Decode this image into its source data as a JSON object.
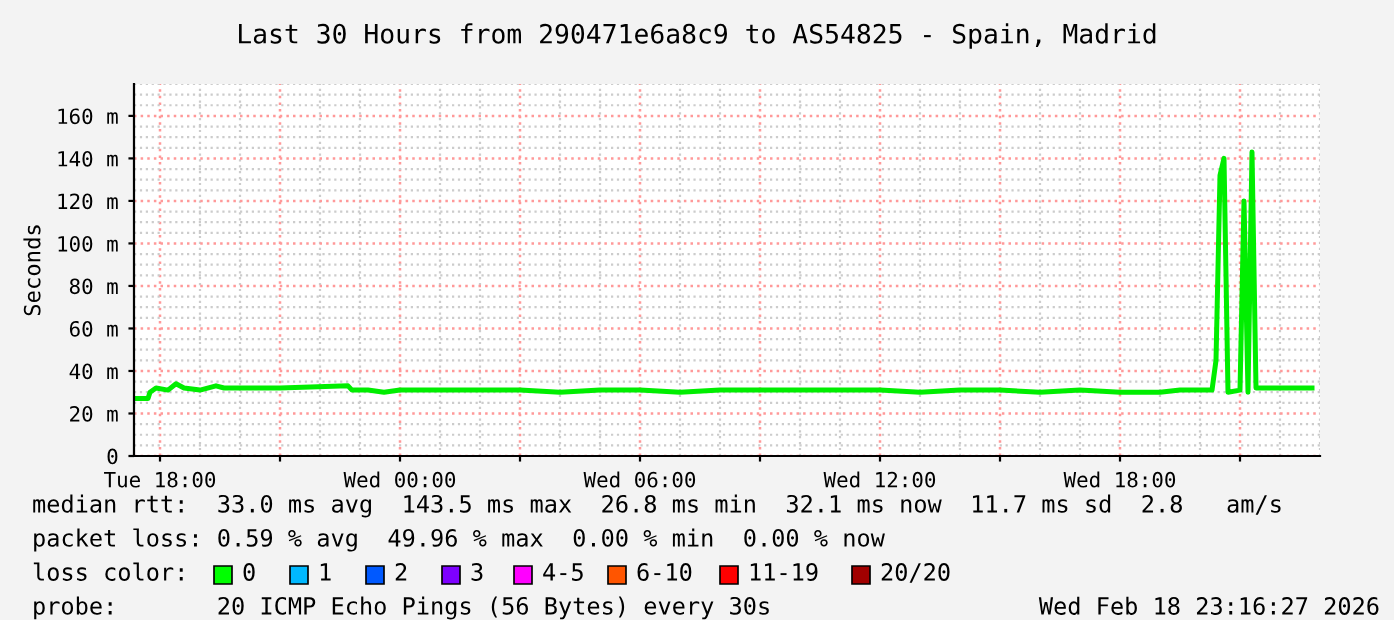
{
  "chart_data": {
    "type": "line",
    "title": "Last 30 Hours from 290471e6a8c9 to AS54825 - Spain, Madrid",
    "ylabel": "Seconds",
    "x": [
      "2026-02-17T17:21",
      "2026-02-17T17:42",
      "2026-02-17T17:45",
      "2026-02-17T17:54",
      "2026-02-17T18:12",
      "2026-02-17T18:24",
      "2026-02-17T18:36",
      "2026-02-17T19:00",
      "2026-02-17T19:24",
      "2026-02-17T19:36",
      "2026-02-17T21:00",
      "2026-02-17T22:42",
      "2026-02-17T22:48",
      "2026-02-17T23:12",
      "2026-02-17T23:36",
      "2026-02-18T00:00",
      "2026-02-18T00:30",
      "2026-02-18T01:00",
      "2026-02-18T02:00",
      "2026-02-18T03:00",
      "2026-02-18T04:00",
      "2026-02-18T05:00",
      "2026-02-18T06:00",
      "2026-02-18T07:00",
      "2026-02-18T08:00",
      "2026-02-18T09:00",
      "2026-02-18T10:00",
      "2026-02-18T11:00",
      "2026-02-18T12:00",
      "2026-02-18T13:00",
      "2026-02-18T14:00",
      "2026-02-18T15:00",
      "2026-02-18T16:00",
      "2026-02-18T17:00",
      "2026-02-18T18:00",
      "2026-02-18T19:00",
      "2026-02-18T19:30",
      "2026-02-18T20:18",
      "2026-02-18T20:24",
      "2026-02-18T20:30",
      "2026-02-18T20:36",
      "2026-02-18T20:42",
      "2026-02-18T21:00",
      "2026-02-18T21:06",
      "2026-02-18T21:12",
      "2026-02-18T21:18",
      "2026-02-18T21:24",
      "2026-02-18T22:48"
    ],
    "series": [
      {
        "color": "#00ee00",
        "values": [
          27,
          27,
          30,
          32,
          31,
          34,
          32,
          31,
          33,
          32,
          32,
          33,
          31,
          31,
          30,
          31,
          31,
          31,
          31,
          31,
          30,
          31,
          31,
          30,
          31,
          31,
          31,
          31,
          31,
          30,
          31,
          31,
          30,
          31,
          30,
          30,
          31,
          31,
          45,
          132,
          140,
          30,
          31,
          120,
          30,
          143,
          32,
          32
        ]
      }
    ],
    "xlim": [
      "2026-02-17T17:21",
      "2026-02-18T23:00"
    ],
    "xticks": [
      {
        "value": "2026-02-17T18:00",
        "label": "Tue 18:00"
      },
      {
        "value": "2026-02-17T21:00",
        "label": null
      },
      {
        "value": "2026-02-18T00:00",
        "label": "Wed 00:00"
      },
      {
        "value": "2026-02-18T03:00",
        "label": null
      },
      {
        "value": "2026-02-18T06:00",
        "label": "Wed 06:00"
      },
      {
        "value": "2026-02-18T09:00",
        "label": null
      },
      {
        "value": "2026-02-18T12:00",
        "label": "Wed 12:00"
      },
      {
        "value": "2026-02-18T15:00",
        "label": null
      },
      {
        "value": "2026-02-18T18:00",
        "label": "Wed 18:00"
      },
      {
        "value": "2026-02-18T21:00",
        "label": null
      }
    ],
    "ylim": [
      0,
      175
    ],
    "yticks": [
      0,
      {
        "value": 20,
        "label": "20 m"
      },
      {
        "value": 40,
        "label": "40 m"
      },
      {
        "value": 60,
        "label": "60 m"
      },
      {
        "value": 80,
        "label": "80 m"
      },
      {
        "value": 100,
        "label": "100 m"
      },
      {
        "value": 120,
        "label": "120 m"
      },
      {
        "value": 140,
        "label": "140 m"
      },
      {
        "value": 160,
        "label": "160 m"
      }
    ],
    "grid": true,
    "legend": false,
    "marker": "none",
    "line_style": "solid",
    "annotations": [
      "median rtt:  33.0 ms avg  143.5 ms max  26.8 ms min  32.1 ms now  11.7 ms sd  2.8   am/s",
      "packet loss: 0.59 % avg  49.96 % max  0.00 % min  0.00 % now",
      "loss color:",
      "0",
      "1",
      "2",
      "3",
      "4-5",
      "6-10",
      "11-19",
      "20/20",
      "probe:       20 ICMP Echo Pings (56 Bytes) every 30s",
      "Wed Feb 18 23:16:27 2026"
    ]
  }
}
